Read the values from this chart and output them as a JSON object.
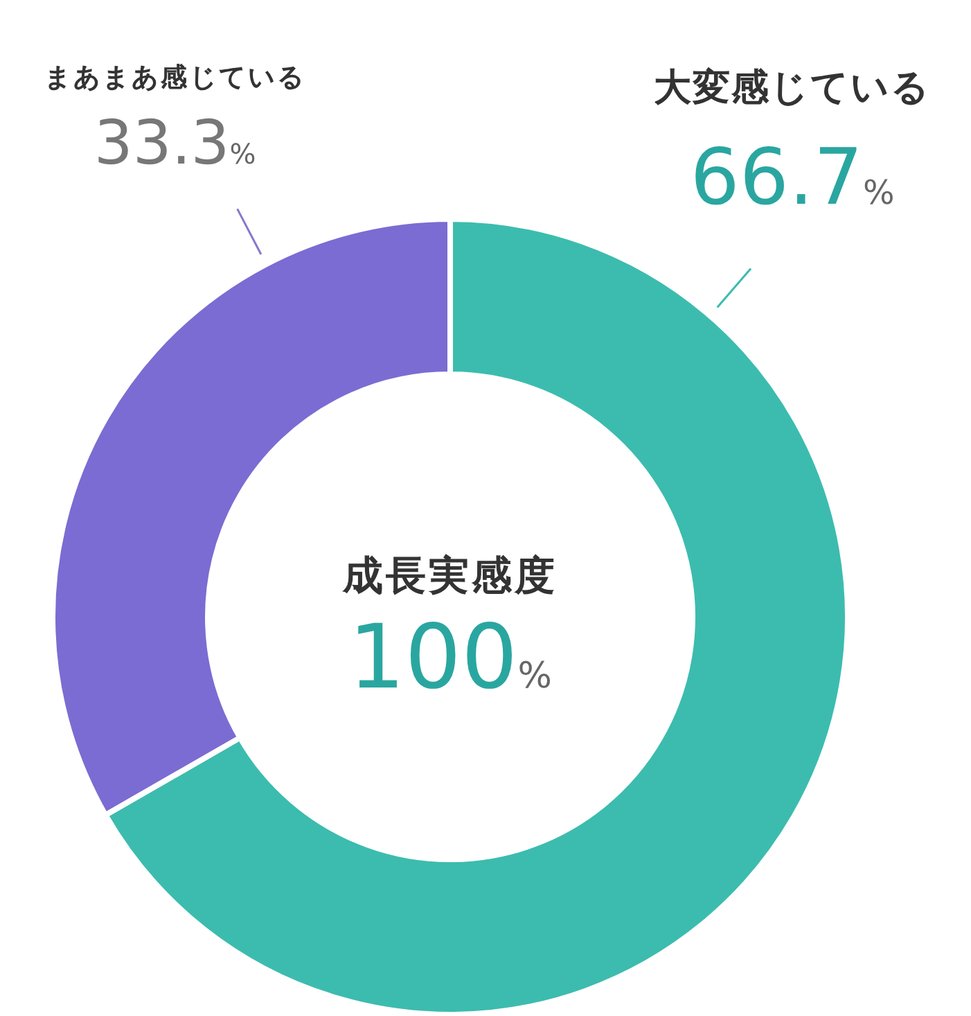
{
  "chart_data": {
    "type": "donut",
    "categories": [
      "大変感じている",
      "まあまあ感じている"
    ],
    "values": [
      66.7,
      33.3
    ],
    "colors": [
      "#3cbcae",
      "#7a6cd2"
    ],
    "value_labels": [
      "66.7%",
      "33.3%"
    ],
    "annotations": [
      "成長実感度",
      "100%"
    ]
  }
}
